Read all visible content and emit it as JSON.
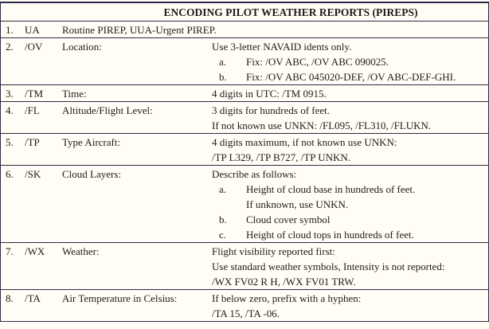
{
  "title": "ENCODING PILOT WEATHER REPORTS (PIREPS)",
  "colors": {
    "border": "#2b2b49",
    "background": "#fffdf4",
    "text": "#1c1c1c"
  },
  "rows": [
    {
      "num": "1.",
      "code": "UA",
      "label": "",
      "span_text": "Routine PIREP, UUA-Urgent PIREP.",
      "lines": []
    },
    {
      "num": "2.",
      "code": "/OV",
      "label": "Location:",
      "lines": [
        {
          "type": "plain",
          "marker": "",
          "text": "Use 3-letter NAVAID idents only."
        },
        {
          "type": "item",
          "marker": "a.",
          "text": "Fix: /OV ABC, /OV ABC 090025."
        },
        {
          "type": "item",
          "marker": "b.",
          "text": "Fix: /OV ABC 045020-DEF, /OV ABC-DEF-GHI."
        }
      ]
    },
    {
      "num": "3.",
      "code": "/TM",
      "label": "Time:",
      "lines": [
        {
          "type": "plain",
          "marker": "",
          "text": "4 digits in UTC: /TM 0915."
        }
      ]
    },
    {
      "num": "4.",
      "code": "/FL",
      "label": "Altitude/Flight Level:",
      "lines": [
        {
          "type": "plain",
          "marker": "",
          "text": "3 digits for hundreds of feet."
        },
        {
          "type": "plain",
          "marker": "",
          "text": "If not known use UNKN: /FL095, /FL310, /FLUKN."
        }
      ]
    },
    {
      "num": "5.",
      "code": "/TP",
      "label": "Type Aircraft:",
      "lines": [
        {
          "type": "plain",
          "marker": "",
          "text": "4 digits maximum, if not known use UNKN:"
        },
        {
          "type": "plain",
          "marker": "",
          "text": "/TP L329, /TP B727, /TP UNKN."
        }
      ]
    },
    {
      "num": "6.",
      "code": "/SK",
      "label": "Cloud Layers:",
      "lines": [
        {
          "type": "plain",
          "marker": "",
          "text": "Describe as follows:"
        },
        {
          "type": "item",
          "marker": "a.",
          "text": "Height of cloud base in hundreds of feet."
        },
        {
          "type": "cont",
          "marker": "",
          "text": "If unknown, use UNKN."
        },
        {
          "type": "item",
          "marker": "b.",
          "text": "Cloud cover symbol"
        },
        {
          "type": "item",
          "marker": "c.",
          "text": "Height of cloud tops in hundreds of feet."
        }
      ]
    },
    {
      "num": "7.",
      "code": "/WX",
      "label": "Weather:",
      "lines": [
        {
          "type": "plain",
          "marker": "",
          "text": "Flight visibility reported first:"
        },
        {
          "type": "plain",
          "marker": "",
          "text": "Use standard weather symbols, Intensity is not reported:"
        },
        {
          "type": "plain",
          "marker": "",
          "text": "/WX FV02 R H, /WX FV01 TRW."
        }
      ]
    },
    {
      "num": "8.",
      "code": "/TA",
      "label": "Air Temperature in Celsius:",
      "lines": [
        {
          "type": "plain",
          "marker": "",
          "text": "If below zero, prefix with a hyphen:"
        },
        {
          "type": "plain",
          "marker": "",
          "text": "/TA 15, /TA -06."
        }
      ]
    }
  ]
}
